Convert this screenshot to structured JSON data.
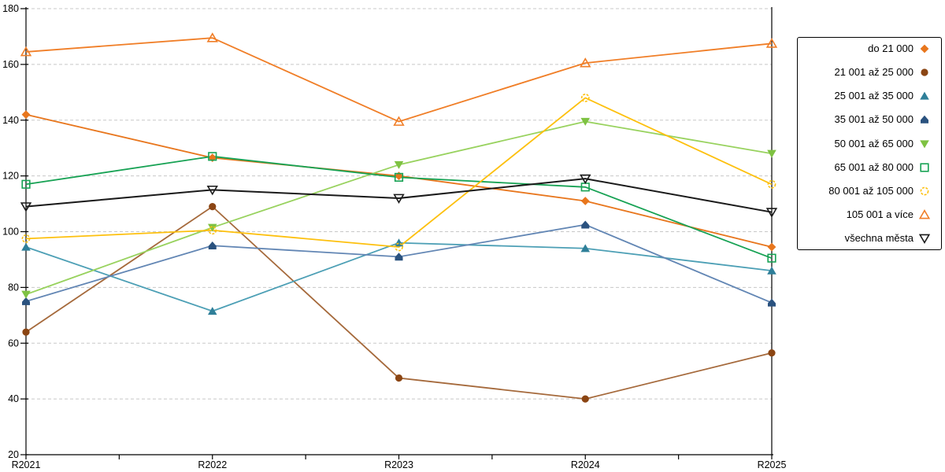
{
  "chart_data": {
    "type": "line",
    "title": "",
    "xlabel": "",
    "ylabel": "",
    "categories": [
      "R2021",
      "R2022",
      "R2023",
      "R2024",
      "R2025"
    ],
    "ylim": [
      20,
      180
    ],
    "ytick_step": 20,
    "y_tick_labels": [
      "20",
      "40",
      "60",
      "80",
      "100",
      "120",
      "140",
      "160",
      "180"
    ],
    "grid": "horizontal-dashed",
    "gridline_color": "#c8c8c8",
    "axis_color": "#000000",
    "legend_position": "right",
    "series": [
      {
        "name": "do 21 000",
        "marker": "diamond",
        "style": "filled",
        "color": "#e8761d",
        "values": [
          142,
          126.5,
          120,
          111,
          94.5
        ]
      },
      {
        "name": "21 001 až 25 000",
        "marker": "circle",
        "style": "filled",
        "color": "#8b4513",
        "line_color": "#a5693b",
        "values": [
          64,
          109,
          47.5,
          40,
          56.5
        ]
      },
      {
        "name": "25 001 až 35 000",
        "marker": "triangle-up",
        "style": "filled",
        "color": "#2f7f99",
        "line_color": "#4c9fb5",
        "values": [
          94.5,
          71.5,
          96,
          94,
          86
        ]
      },
      {
        "name": "35 001 až 50 000",
        "marker": "pentagon-up",
        "style": "filled",
        "color": "#2a527f",
        "line_color": "#6286b4",
        "values": [
          75,
          95,
          91,
          102.5,
          74.5
        ]
      },
      {
        "name": "50 001 až 65 000",
        "marker": "triangle-down",
        "style": "filled",
        "color": "#7ec242",
        "line_color": "#98d25e",
        "values": [
          77.5,
          101.5,
          124,
          139.5,
          128
        ]
      },
      {
        "name": "65 001 až 80 000",
        "marker": "square",
        "style": "open",
        "color": "#17a254",
        "values": [
          117,
          127,
          119.5,
          116,
          90.5
        ]
      },
      {
        "name": "80 001 až 105 000",
        "marker": "circle-dashed",
        "style": "open",
        "color": "#fdc00e",
        "values": [
          97.5,
          100.5,
          94.5,
          148,
          117
        ]
      },
      {
        "name": "105 001 a více",
        "marker": "triangle-up",
        "style": "open",
        "color": "#f07e27",
        "values": [
          164.5,
          169.5,
          139.5,
          160.5,
          167.5
        ]
      },
      {
        "name": "všechna města",
        "marker": "triangle-down",
        "style": "open",
        "color": "#1a1a1a",
        "values": [
          109,
          115,
          112,
          119,
          107
        ]
      }
    ]
  }
}
